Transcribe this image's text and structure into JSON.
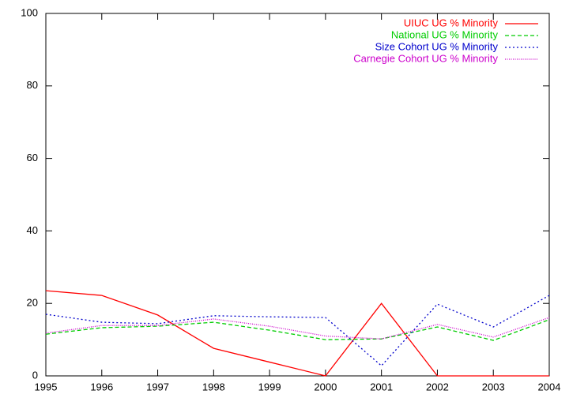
{
  "chart_data": {
    "type": "line",
    "x": [
      1995,
      1996,
      1997,
      1998,
      1999,
      2000,
      2001,
      2002,
      2003,
      2004
    ],
    "series": [
      {
        "name": "UIUC UG % Minority",
        "color": "#ff0000",
        "values": [
          23.5,
          22.2,
          16.8,
          7.6,
          3.8,
          0,
          20,
          0,
          0,
          0
        ]
      },
      {
        "name": "National UG % Minority",
        "color": "#00cc00",
        "values": [
          11.5,
          13.3,
          13.7,
          14.8,
          12.6,
          10,
          10.2,
          13.5,
          9.8,
          15.5
        ]
      },
      {
        "name": "Size Cohort UG % Minority",
        "color": "#0000cc",
        "values": [
          17,
          14.8,
          14.4,
          16.6,
          16.3,
          16.1,
          2.8,
          19.8,
          13.5,
          22.2
        ]
      },
      {
        "name": "Carnegie Cohort UG % Minority",
        "color": "#cc00cc",
        "values": [
          11.8,
          13.9,
          13.9,
          15.7,
          13.7,
          11,
          10.2,
          14.2,
          10.7,
          16.1
        ]
      }
    ],
    "xlim": [
      1995,
      2004
    ],
    "xticks": [
      1995,
      1996,
      1997,
      1998,
      1999,
      2000,
      2001,
      2002,
      2003,
      2004
    ],
    "ylim": [
      0,
      100
    ],
    "yticks": [
      0,
      20,
      40,
      60,
      80,
      100
    ],
    "legend": "top-right"
  }
}
